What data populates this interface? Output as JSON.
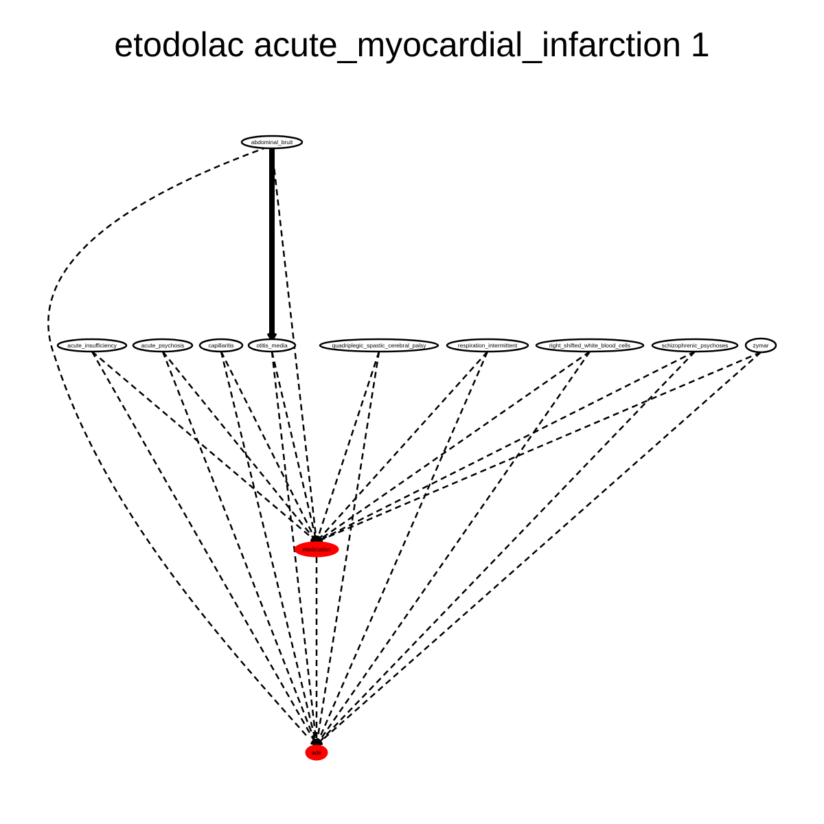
{
  "title": "etodolac acute_myocardial_infarction 1",
  "colors": {
    "node_fill": "#ffffff",
    "highlight_fill": "#ff0000",
    "stroke": "#000000"
  },
  "nodes": [
    {
      "id": "abdominal_bruit",
      "label": "abdominal_bruit",
      "highlight": false
    },
    {
      "id": "acute_insufficiency",
      "label": "acute_insufficiency",
      "highlight": false
    },
    {
      "id": "acute_psychosis",
      "label": "acute_psychosis",
      "highlight": false
    },
    {
      "id": "capillaritis",
      "label": "capillaritis",
      "highlight": false
    },
    {
      "id": "otitis_media",
      "label": "otitis_media",
      "highlight": false
    },
    {
      "id": "quadriplegic_spastic_cerebral_palsy",
      "label": "quadriplegic_spastic_cerebral_palsy",
      "highlight": false
    },
    {
      "id": "respiration_intermittent",
      "label": "respiration_intermittent",
      "highlight": false
    },
    {
      "id": "right_shifted_white_blood_cells",
      "label": "right_shifted_white_blood_cells",
      "highlight": false
    },
    {
      "id": "schizophrenic_psychoses",
      "label": "schizophrenic_psychoses",
      "highlight": false
    },
    {
      "id": "zymar",
      "label": "zymar",
      "highlight": false
    },
    {
      "id": "medication",
      "label": "medication",
      "highlight": true
    },
    {
      "id": "ade",
      "label": "ade",
      "highlight": true
    }
  ],
  "edges": [
    {
      "from": "abdominal_bruit",
      "to": "otitis_media",
      "style": "solid-bold"
    },
    {
      "from": "abdominal_bruit",
      "to": "medication",
      "style": "dashed"
    },
    {
      "from": "abdominal_bruit",
      "to": "ade",
      "style": "dashed"
    },
    {
      "from": "acute_insufficiency",
      "to": "medication",
      "style": "dashed"
    },
    {
      "from": "acute_insufficiency",
      "to": "ade",
      "style": "dashed"
    },
    {
      "from": "acute_psychosis",
      "to": "medication",
      "style": "dashed"
    },
    {
      "from": "acute_psychosis",
      "to": "ade",
      "style": "dashed"
    },
    {
      "from": "capillaritis",
      "to": "medication",
      "style": "dashed"
    },
    {
      "from": "capillaritis",
      "to": "ade",
      "style": "dashed"
    },
    {
      "from": "otitis_media",
      "to": "medication",
      "style": "dashed"
    },
    {
      "from": "otitis_media",
      "to": "ade",
      "style": "dashed"
    },
    {
      "from": "quadriplegic_spastic_cerebral_palsy",
      "to": "medication",
      "style": "dashed"
    },
    {
      "from": "quadriplegic_spastic_cerebral_palsy",
      "to": "ade",
      "style": "dashed"
    },
    {
      "from": "respiration_intermittent",
      "to": "medication",
      "style": "dashed"
    },
    {
      "from": "respiration_intermittent",
      "to": "ade",
      "style": "dashed"
    },
    {
      "from": "right_shifted_white_blood_cells",
      "to": "medication",
      "style": "dashed"
    },
    {
      "from": "right_shifted_white_blood_cells",
      "to": "ade",
      "style": "dashed"
    },
    {
      "from": "schizophrenic_psychoses",
      "to": "medication",
      "style": "dashed"
    },
    {
      "from": "schizophrenic_psychoses",
      "to": "ade",
      "style": "dashed"
    },
    {
      "from": "zymar",
      "to": "medication",
      "style": "dashed"
    },
    {
      "from": "zymar",
      "to": "ade",
      "style": "dashed"
    },
    {
      "from": "medication",
      "to": "ade",
      "style": "dashed"
    }
  ]
}
